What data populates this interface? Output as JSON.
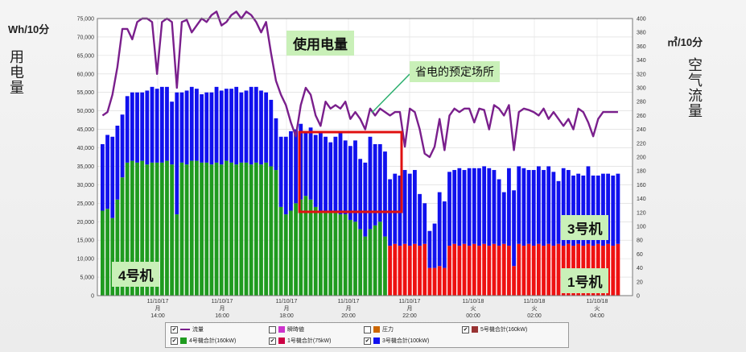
{
  "labels": {
    "unit_left": "Wh/10分",
    "unit_right": "㎥/10分",
    "left_vertical": [
      "用",
      "电",
      "量"
    ],
    "right_vertical": [
      "空",
      "气",
      "流",
      "量"
    ],
    "usage_title": "使用电量",
    "saving_callout": "省电的预定场所",
    "unit4": "4号机",
    "unit3": "3号机",
    "unit1": "1号机"
  },
  "colors": {
    "unit4": "#1f9b1f",
    "unit3": "#1111ee",
    "unit1": "#ee1111",
    "flow": "#7a1f8c",
    "highlight": "#e01010",
    "callout_line": "#2fb070"
  },
  "legend": [
    {
      "label": "流量",
      "checked": true,
      "swatch": "#7a1f8c",
      "kind": "line"
    },
    {
      "label": "瞬時値",
      "checked": false,
      "swatch": "#cc33cc",
      "kind": "box"
    },
    {
      "label": "圧力",
      "checked": false,
      "swatch": "#cc6600",
      "kind": "box"
    },
    {
      "label": "5号機合計(160kW)",
      "checked": true,
      "swatch": "#993333",
      "kind": "box"
    },
    {
      "label": "4号機合計(160kW)",
      "checked": true,
      "swatch": "#1f9b1f",
      "kind": "box"
    },
    {
      "label": "1号機合計(75kW)",
      "checked": true,
      "swatch": "#cc0044",
      "kind": "box"
    },
    {
      "label": "3号機合計(100kW)",
      "checked": true,
      "swatch": "#1111ee",
      "kind": "box"
    }
  ],
  "chart_data": {
    "type": "bar",
    "stacked": true,
    "grid": true,
    "left_axis": {
      "min": 0,
      "max": 75000,
      "ticks": [
        "0",
        "5,000",
        "10,000",
        "15,000",
        "20,000",
        "25,000",
        "30,000",
        "35,000",
        "40,000",
        "45,000",
        "50,000",
        "55,000",
        "60,000",
        "65,000",
        "70,000",
        "75,000"
      ]
    },
    "right_axis": {
      "min": 0,
      "max": 400,
      "ticks": [
        "0",
        "20",
        "40",
        "60",
        "80",
        "100",
        "120",
        "140",
        "160",
        "180",
        "200",
        "220",
        "240",
        "260",
        "280",
        "300",
        "320",
        "340",
        "360",
        "380",
        "400"
      ]
    },
    "x_ticks": [
      {
        "date": "11/10/17",
        "day": "月",
        "time": "14:00"
      },
      {
        "date": "11/10/17",
        "day": "月",
        "time": "16:00"
      },
      {
        "date": "11/10/17",
        "day": "月",
        "time": "18:00"
      },
      {
        "date": "11/10/17",
        "day": "月",
        "time": "20:00"
      },
      {
        "date": "11/10/17",
        "day": "月",
        "time": "22:00"
      },
      {
        "date": "11/10/18",
        "day": "火",
        "time": "00:00"
      },
      {
        "date": "11/10/18",
        "day": "火",
        "time": "02:00"
      },
      {
        "date": "11/10/18",
        "day": "火",
        "time": "04:00"
      }
    ],
    "series": [
      {
        "name": "4号機合計(160kW)",
        "values": [
          23000,
          23500,
          21000,
          26000,
          32000,
          36000,
          36500,
          36000,
          36500,
          35500,
          36000,
          36000,
          36000,
          36500,
          35500,
          22000,
          36000,
          35500,
          36500,
          36500,
          36000,
          36000,
          35500,
          36000,
          35500,
          36500,
          36000,
          35500,
          36000,
          36000,
          35500,
          36000,
          35500,
          36000,
          35000,
          34000,
          24000,
          22000,
          23000,
          25000,
          26000,
          27000,
          26000,
          24000,
          23000,
          23000,
          22500,
          23000,
          22000,
          22000,
          20500,
          20000,
          18000,
          16000,
          18000,
          19000,
          20000,
          16000,
          0,
          0,
          0,
          0,
          0,
          0,
          0,
          0,
          0,
          0,
          0,
          0,
          0,
          0,
          0,
          0,
          0,
          0,
          0,
          0,
          0,
          0,
          0,
          0,
          0,
          0,
          0,
          0,
          0,
          0,
          0,
          0,
          0,
          0,
          0,
          0,
          0,
          0,
          0,
          0,
          0,
          0,
          0,
          0,
          0,
          0,
          0,
          0,
          0
        ]
      },
      {
        "name": "3号機合計(100kW)",
        "values": [
          18000,
          20000,
          22000,
          20000,
          17000,
          18000,
          18500,
          19000,
          18500,
          20000,
          20500,
          20000,
          20500,
          20000,
          17000,
          33000,
          19000,
          20000,
          20000,
          19500,
          18500,
          19000,
          19500,
          20500,
          20000,
          19500,
          20000,
          21000,
          19000,
          19500,
          21000,
          20500,
          20000,
          19000,
          18000,
          14000,
          19000,
          21000,
          21500,
          20000,
          20500,
          17000,
          19500,
          19500,
          21500,
          20000,
          19000,
          20000,
          22000,
          20000,
          20000,
          22000,
          19000,
          20000,
          25000,
          22000,
          21000,
          23000,
          18000,
          19000,
          19000,
          20000,
          19500,
          20000,
          14000,
          11000,
          10000,
          12000,
          20000,
          18000,
          20000,
          20000,
          21000,
          20000,
          21000,
          20500,
          21000,
          21000,
          21000,
          20000,
          18000,
          14000,
          21000,
          20500,
          21000,
          21000,
          20000,
          20500,
          21000,
          20500,
          21000,
          20000,
          17000,
          21000,
          20000,
          19000,
          19000,
          19000,
          21000,
          19000,
          18500,
          19500,
          19000,
          19000,
          19000
        ]
      },
      {
        "name": "1号機合計(75kW)",
        "values": [
          0,
          0,
          0,
          0,
          0,
          0,
          0,
          0,
          0,
          0,
          0,
          0,
          0,
          0,
          0,
          0,
          0,
          0,
          0,
          0,
          0,
          0,
          0,
          0,
          0,
          0,
          0,
          0,
          0,
          0,
          0,
          0,
          0,
          0,
          0,
          0,
          0,
          0,
          0,
          0,
          0,
          0,
          0,
          0,
          0,
          0,
          0,
          0,
          0,
          0,
          0,
          0,
          0,
          0,
          0,
          0,
          0,
          0,
          13500,
          14000,
          13500,
          14000,
          13500,
          14000,
          13500,
          14000,
          7500,
          7500,
          8000,
          7500,
          13500,
          14000,
          13500,
          14000,
          13500,
          14000,
          13500,
          14000,
          13500,
          14000,
          13500,
          14000,
          13500,
          8000,
          14000,
          13500,
          14000,
          13500,
          14000,
          13500,
          14000,
          13500,
          14000,
          13500,
          14000,
          13500,
          14000,
          13500,
          14000,
          13500,
          14000,
          13500,
          14000,
          13500,
          14000
        ]
      },
      {
        "name": "流量",
        "axis": "right",
        "values": [
          260,
          265,
          290,
          330,
          385,
          385,
          370,
          395,
          400,
          400,
          395,
          320,
          395,
          400,
          395,
          300,
          395,
          398,
          380,
          390,
          400,
          395,
          405,
          410,
          390,
          395,
          405,
          410,
          400,
          410,
          405,
          395,
          380,
          395,
          350,
          310,
          290,
          275,
          250,
          230,
          275,
          300,
          290,
          260,
          245,
          280,
          270,
          275,
          270,
          280,
          255,
          265,
          255,
          240,
          270,
          260,
          270,
          265,
          260,
          265,
          265,
          215,
          270,
          265,
          240,
          205,
          200,
          215,
          255,
          210,
          260,
          270,
          265,
          270,
          270,
          250,
          270,
          268,
          240,
          275,
          270,
          260,
          275,
          210,
          265,
          270,
          268,
          265,
          260,
          270,
          255,
          265,
          255,
          245,
          255,
          240,
          270,
          265,
          250,
          230,
          255,
          265,
          265,
          265,
          265
        ]
      }
    ]
  }
}
